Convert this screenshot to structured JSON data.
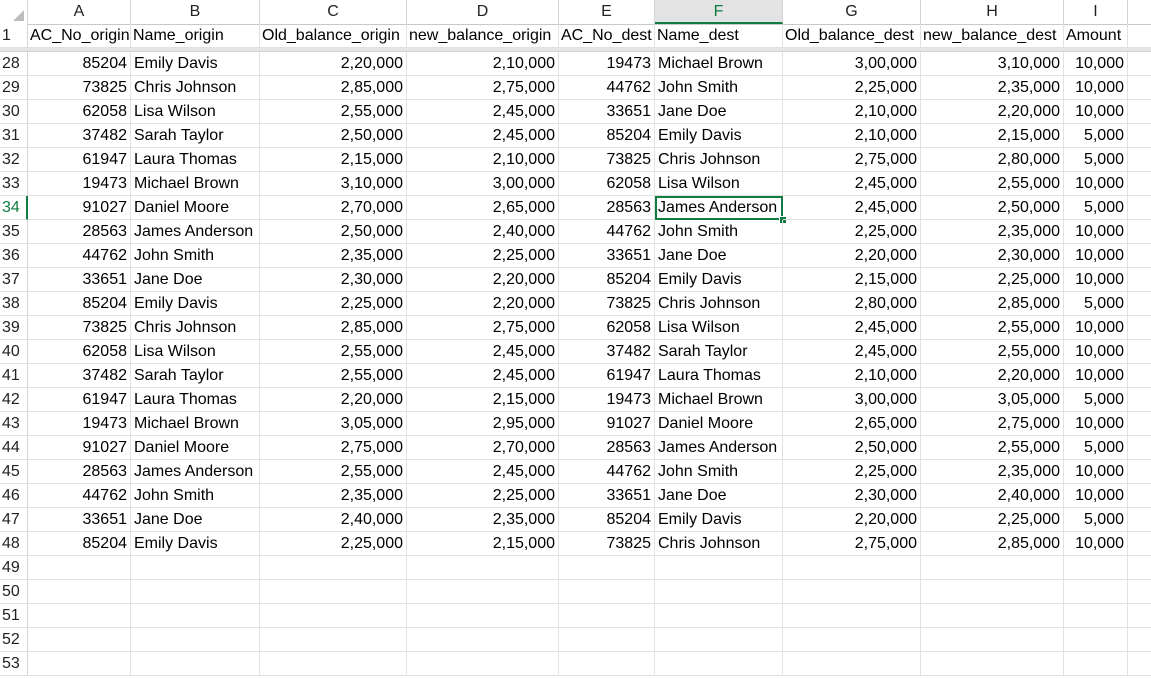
{
  "columns": [
    "A",
    "B",
    "C",
    "D",
    "E",
    "F",
    "G",
    "H",
    "I"
  ],
  "selected_column": "F",
  "selected_row": "34",
  "header_row": {
    "number": "1",
    "cells": [
      "AC_No_origin",
      "Name_origin",
      "Old_balance_origin",
      "new_balance_origin",
      "AC_No_dest",
      "Name_dest",
      "Old_balance_dest",
      "new_balance_dest",
      "Amount"
    ]
  },
  "rows": [
    {
      "n": "28",
      "cells": [
        "85204",
        "Emily Davis",
        "2,20,000",
        "2,10,000",
        "19473",
        "Michael Brown",
        "3,00,000",
        "3,10,000",
        "10,000"
      ]
    },
    {
      "n": "29",
      "cells": [
        "73825",
        "Chris Johnson",
        "2,85,000",
        "2,75,000",
        "44762",
        "John Smith",
        "2,25,000",
        "2,35,000",
        "10,000"
      ]
    },
    {
      "n": "30",
      "cells": [
        "62058",
        "Lisa Wilson",
        "2,55,000",
        "2,45,000",
        "33651",
        "Jane Doe",
        "2,10,000",
        "2,20,000",
        "10,000"
      ]
    },
    {
      "n": "31",
      "cells": [
        "37482",
        "Sarah Taylor",
        "2,50,000",
        "2,45,000",
        "85204",
        "Emily Davis",
        "2,10,000",
        "2,15,000",
        "5,000"
      ]
    },
    {
      "n": "32",
      "cells": [
        "61947",
        "Laura Thomas",
        "2,15,000",
        "2,10,000",
        "73825",
        "Chris Johnson",
        "2,75,000",
        "2,80,000",
        "5,000"
      ]
    },
    {
      "n": "33",
      "cells": [
        "19473",
        "Michael Brown",
        "3,10,000",
        "3,00,000",
        "62058",
        "Lisa Wilson",
        "2,45,000",
        "2,55,000",
        "10,000"
      ]
    },
    {
      "n": "34",
      "cells": [
        "91027",
        "Daniel Moore",
        "2,70,000",
        "2,65,000",
        "28563",
        "James Anderson",
        "2,45,000",
        "2,50,000",
        "5,000"
      ]
    },
    {
      "n": "35",
      "cells": [
        "28563",
        "James Anderson",
        "2,50,000",
        "2,40,000",
        "44762",
        "John Smith",
        "2,25,000",
        "2,35,000",
        "10,000"
      ]
    },
    {
      "n": "36",
      "cells": [
        "44762",
        "John Smith",
        "2,35,000",
        "2,25,000",
        "33651",
        "Jane Doe",
        "2,20,000",
        "2,30,000",
        "10,000"
      ]
    },
    {
      "n": "37",
      "cells": [
        "33651",
        "Jane Doe",
        "2,30,000",
        "2,20,000",
        "85204",
        "Emily Davis",
        "2,15,000",
        "2,25,000",
        "10,000"
      ]
    },
    {
      "n": "38",
      "cells": [
        "85204",
        "Emily Davis",
        "2,25,000",
        "2,20,000",
        "73825",
        "Chris Johnson",
        "2,80,000",
        "2,85,000",
        "5,000"
      ]
    },
    {
      "n": "39",
      "cells": [
        "73825",
        "Chris Johnson",
        "2,85,000",
        "2,75,000",
        "62058",
        "Lisa Wilson",
        "2,45,000",
        "2,55,000",
        "10,000"
      ]
    },
    {
      "n": "40",
      "cells": [
        "62058",
        "Lisa Wilson",
        "2,55,000",
        "2,45,000",
        "37482",
        "Sarah Taylor",
        "2,45,000",
        "2,55,000",
        "10,000"
      ]
    },
    {
      "n": "41",
      "cells": [
        "37482",
        "Sarah Taylor",
        "2,55,000",
        "2,45,000",
        "61947",
        "Laura Thomas",
        "2,10,000",
        "2,20,000",
        "10,000"
      ]
    },
    {
      "n": "42",
      "cells": [
        "61947",
        "Laura Thomas",
        "2,20,000",
        "2,15,000",
        "19473",
        "Michael Brown",
        "3,00,000",
        "3,05,000",
        "5,000"
      ]
    },
    {
      "n": "43",
      "cells": [
        "19473",
        "Michael Brown",
        "3,05,000",
        "2,95,000",
        "91027",
        "Daniel Moore",
        "2,65,000",
        "2,75,000",
        "10,000"
      ]
    },
    {
      "n": "44",
      "cells": [
        "91027",
        "Daniel Moore",
        "2,75,000",
        "2,70,000",
        "28563",
        "James Anderson",
        "2,50,000",
        "2,55,000",
        "5,000"
      ]
    },
    {
      "n": "45",
      "cells": [
        "28563",
        "James Anderson",
        "2,55,000",
        "2,45,000",
        "44762",
        "John Smith",
        "2,25,000",
        "2,35,000",
        "10,000"
      ]
    },
    {
      "n": "46",
      "cells": [
        "44762",
        "John Smith",
        "2,35,000",
        "2,25,000",
        "33651",
        "Jane Doe",
        "2,30,000",
        "2,40,000",
        "10,000"
      ]
    },
    {
      "n": "47",
      "cells": [
        "33651",
        "Jane Doe",
        "2,40,000",
        "2,35,000",
        "85204",
        "Emily Davis",
        "2,20,000",
        "2,25,000",
        "5,000"
      ]
    },
    {
      "n": "48",
      "cells": [
        "85204",
        "Emily Davis",
        "2,25,000",
        "2,15,000",
        "73825",
        "Chris Johnson",
        "2,75,000",
        "2,85,000",
        "10,000"
      ]
    },
    {
      "n": "49",
      "cells": [
        "",
        "",
        "",
        "",
        "",
        "",
        "",
        "",
        ""
      ]
    },
    {
      "n": "50",
      "cells": [
        "",
        "",
        "",
        "",
        "",
        "",
        "",
        "",
        ""
      ]
    },
    {
      "n": "51",
      "cells": [
        "",
        "",
        "",
        "",
        "",
        "",
        "",
        "",
        ""
      ]
    },
    {
      "n": "52",
      "cells": [
        "",
        "",
        "",
        "",
        "",
        "",
        "",
        "",
        ""
      ]
    },
    {
      "n": "53",
      "cells": [
        "",
        "",
        "",
        "",
        "",
        "",
        "",
        "",
        ""
      ]
    }
  ]
}
